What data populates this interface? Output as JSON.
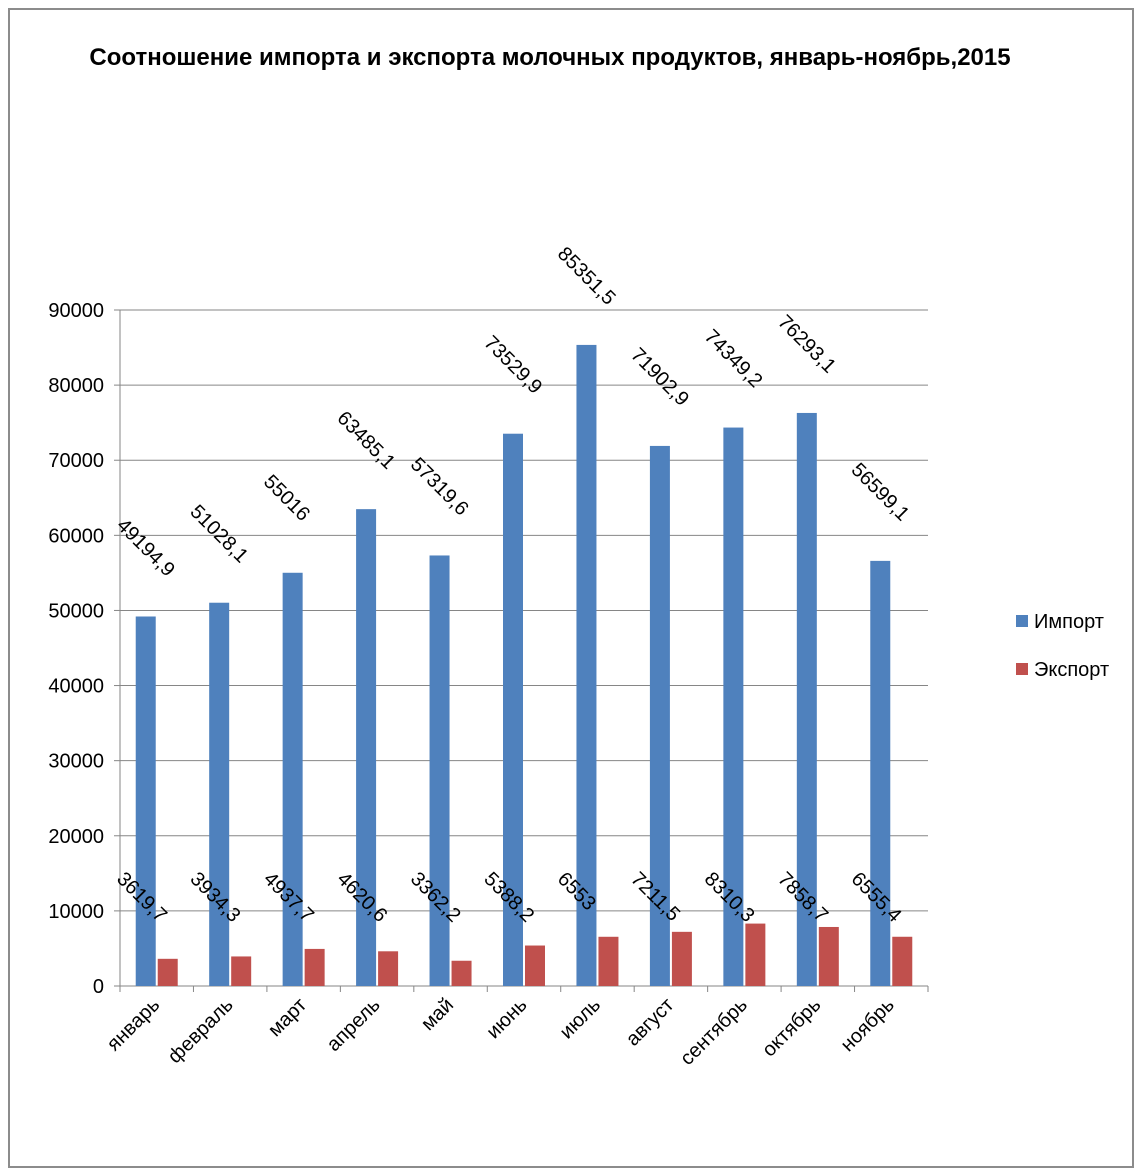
{
  "chart_data": {
    "type": "bar",
    "title": "Соотношение импорта и экспорта молочных продуктов, январь-ноябрь,2015",
    "categories": [
      "январь",
      "февраль",
      "март",
      "апрель",
      "май",
      "июнь",
      "июль",
      "август",
      "сентябрь",
      "октябрь",
      "ноябрь"
    ],
    "series": [
      {
        "name": "Импорт",
        "color": "#4f81bd",
        "values": [
          49194.9,
          51028.1,
          55016,
          63485.1,
          57319.6,
          73529.9,
          85351.5,
          71902.9,
          74349.2,
          76293.1,
          56599.1
        ],
        "labels": [
          "49194,9",
          "51028,1",
          "55016",
          "63485,1",
          "57319,6",
          "73529,9",
          "85351,5",
          "71902,9",
          "74349,2",
          "76293,1",
          "56599,1"
        ]
      },
      {
        "name": "Экспорт",
        "color": "#c0504d",
        "values": [
          3619.7,
          3934.3,
          4937.7,
          4620.6,
          3362.2,
          5388.2,
          6553,
          7211.5,
          8310.3,
          7858.7,
          6555.4
        ],
        "labels": [
          "3619,7",
          "3934,3",
          "4937,7",
          "4620,6",
          "3362,2",
          "5388,2",
          "6553",
          "7211,5",
          "8310,3",
          "7858,7",
          "6555,4"
        ]
      }
    ],
    "ylim": [
      0,
      90000
    ],
    "yticks": [
      "0",
      "10000",
      "20000",
      "30000",
      "40000",
      "50000",
      "60000",
      "70000",
      "80000",
      "90000"
    ],
    "grid": true,
    "legend": "right"
  }
}
